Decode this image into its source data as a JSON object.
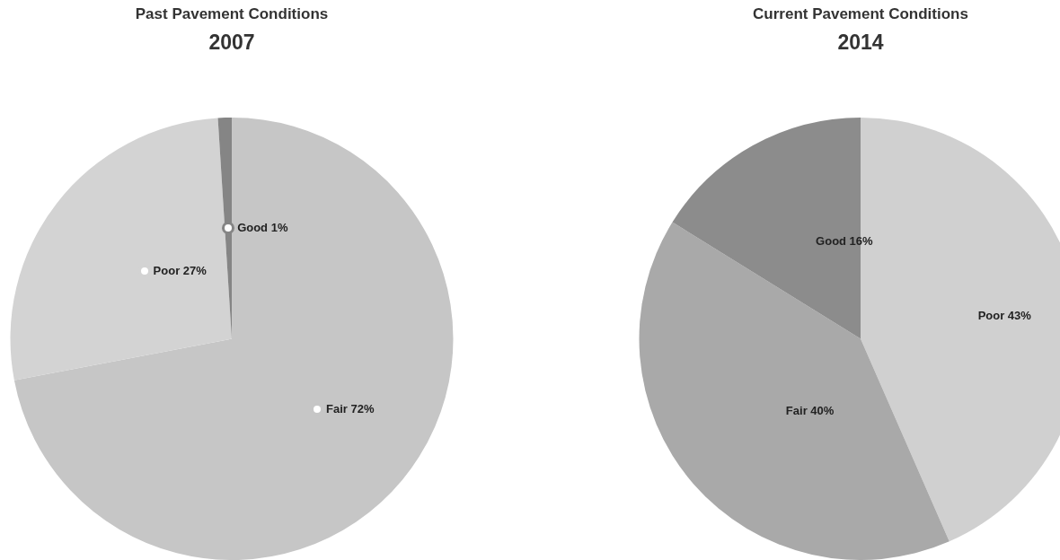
{
  "chart_data": [
    {
      "type": "pie",
      "title": "Past Pavement Conditions",
      "subtitle": "2007",
      "categories": [
        "Fair",
        "Poor",
        "Good"
      ],
      "values": [
        72,
        27,
        1
      ],
      "colors": [
        "#c6c6c6",
        "#d3d3d3",
        "#858585"
      ],
      "value_labels": [
        "72%",
        "27%",
        "1%"
      ],
      "marker": "circle",
      "legend": "center"
    },
    {
      "type": "pie",
      "title": "Current Pavement Conditions",
      "subtitle": "2014",
      "categories": [
        "Poor",
        "Fair",
        "Good"
      ],
      "values": [
        43,
        40,
        16
      ],
      "colors": [
        "#d0d0d0",
        "#a9a9a9",
        "#8c8c8c"
      ],
      "value_labels": [
        "43%",
        "40%",
        "16%"
      ],
      "marker": "square",
      "legend": false
    }
  ]
}
